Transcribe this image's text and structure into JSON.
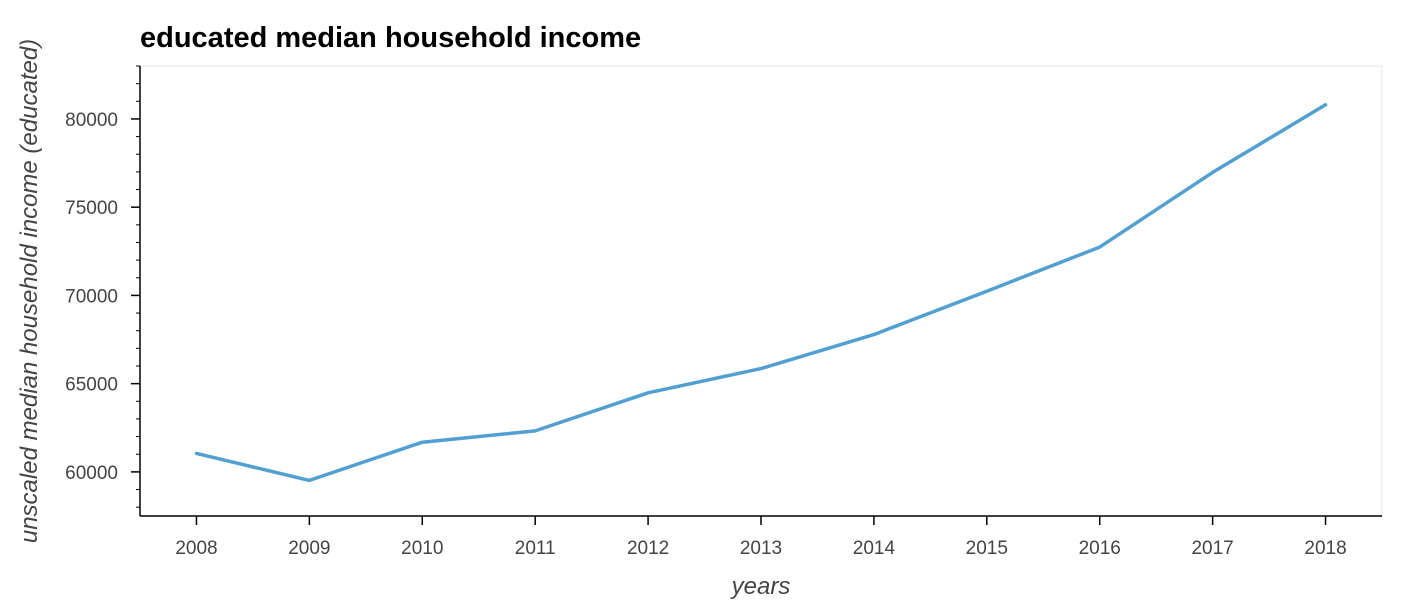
{
  "chart_data": {
    "type": "line",
    "title": "educated median household income",
    "xlabel": "years",
    "ylabel": "unscaled median household income (educated)",
    "x": [
      2008,
      2009,
      2010,
      2011,
      2012,
      2013,
      2014,
      2015,
      2016,
      2017,
      2018
    ],
    "series": [
      {
        "values": [
          61050,
          59520,
          61680,
          62320,
          64480,
          65850,
          67780,
          70240,
          72740,
          76970,
          80800
        ],
        "color": "#51a0d1"
      }
    ],
    "xlim": [
      2007.5,
      2018.5
    ],
    "ylim": [
      57500,
      83000
    ],
    "yticks": [
      60000,
      65000,
      70000,
      75000,
      80000
    ],
    "yticks_minor_step": 1000,
    "grid": false,
    "legend": "none"
  },
  "colors": {
    "axis": "#000000",
    "frame": "#e5e5e5",
    "text": "#444444"
  }
}
